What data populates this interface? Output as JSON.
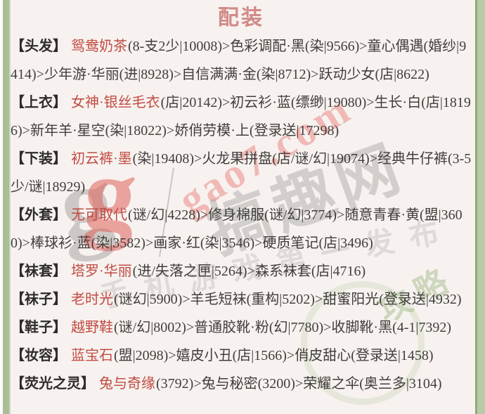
{
  "title": "配装",
  "sections": [
    {
      "slot": "头发",
      "label": "【头发】",
      "best": "鸳鸯奶茶",
      "rest": "(8-支2少|10008)>色彩调配·黑(染|9566)>童心偶遇(婚纱|9414)>少年游·华丽(进|8928)>自信满满·金(染|8712)>跃动少女(店|8622)"
    },
    {
      "slot": "上衣",
      "label": "【上衣】",
      "best": "女神·银丝毛衣",
      "rest": "(店|20142)>初云衫·蓝(缥缈|19080)>生长·白(店|18196)>新年羊·星空(染|18022)>娇俏劳模·上(登录送|17298)"
    },
    {
      "slot": "下装",
      "label": "【下装】",
      "best": "初云裤·墨",
      "rest": "(染|19408)>火龙果拼盘(店/谜/幻|19074)>经典牛仔裤(3-5少/谜|18929)"
    },
    {
      "slot": "外套",
      "label": "【外套】",
      "best": "无可取代",
      "rest": "(谜/幻|4228)>修身棉服(谜/幻|3774)>随意青春·黄(盟|3600)>棒球衫·蓝(染|3582)>画家·红(染|3546)>硬质笔记(店|3496)"
    },
    {
      "slot": "袜套",
      "label": "【袜套】",
      "best": "塔罗·华丽",
      "rest": "(进/失落之匣|5264)>森系袜套(店|4716)"
    },
    {
      "slot": "袜子",
      "label": "【袜子】",
      "best": "老时光",
      "rest": "(谜幻|5900)>羊毛短袜(重构|5202)>甜蜜阳光(登录送|4932)"
    },
    {
      "slot": "鞋子",
      "label": "【鞋子】",
      "best": "越野鞋",
      "rest": "(谜/幻|8002)>普通胶靴·粉(幻|7780)>收脚靴·黑(4-1|7392)"
    },
    {
      "slot": "妆容",
      "label": "【妆容】",
      "best": "蓝宝石",
      "rest": "(盟|2098)>嬉皮小丑(店|1566)>俏皮甜心(登录送|1458)"
    },
    {
      "slot": "荧光之灵",
      "label": "【荧光之灵】",
      "best": "兔与奇缘",
      "rest": "(3792)>兔与秘密(3200)>荣耀之伞(奥兰多|3104)"
    }
  ],
  "watermark": {
    "logo_glyph": "g",
    "url": "gao7.com",
    "brand": "搞趣网",
    "tagline": "手机游戏第一发布",
    "stamp": "攻略"
  },
  "colors": {
    "background": "#f7f2ef",
    "border_green": "#a9bd97",
    "title_pink": "#d18a86",
    "accent_red": "#c14b42",
    "body_text": "#403e3c",
    "watermark_red": "#e9807c"
  }
}
